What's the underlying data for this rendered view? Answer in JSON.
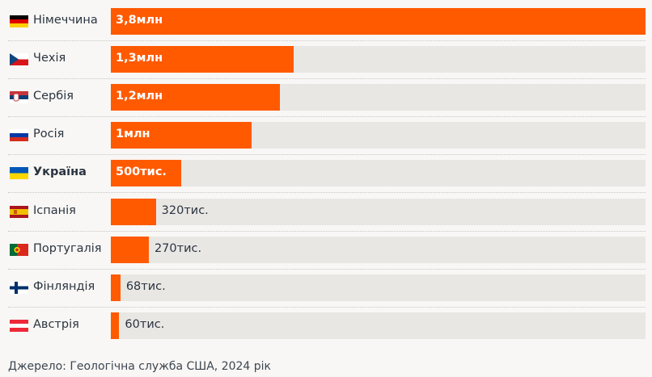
{
  "chart_data": {
    "type": "bar",
    "orientation": "horizontal",
    "unit": "thousand",
    "xlim": [
      0,
      3800
    ],
    "categories": [
      "Німеччина",
      "Чехія",
      "Сербія",
      "Росія",
      "Україна",
      "Іспанія",
      "Португалія",
      "Фінляндія",
      "Австрія"
    ],
    "values": [
      3800,
      1300,
      1200,
      1000,
      500,
      320,
      270,
      68,
      60
    ],
    "labels": [
      "3,8млн",
      "1,3млн",
      "1,2млн",
      "1млн",
      "500тис.",
      "320тис.",
      "270тис.",
      "68тис.",
      "60тис."
    ],
    "flags": [
      "de",
      "cz",
      "rs",
      "ru",
      "ua",
      "es",
      "pt",
      "fi",
      "at"
    ],
    "highlight": "Україна",
    "bar_color": "#ff5a00",
    "track_color": "#e9e7e4"
  },
  "source": "Джерело: Геологічна служба США, 2024 рік"
}
